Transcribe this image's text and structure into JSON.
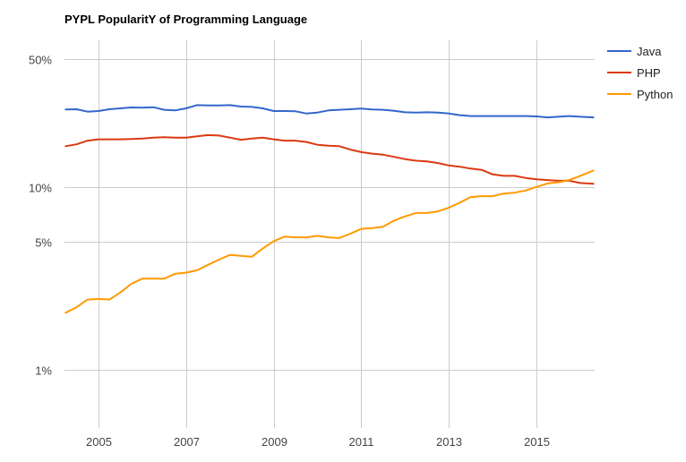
{
  "chart_data": {
    "type": "line",
    "title": "PYPL PopularitY of Programming Language",
    "xlabel": "",
    "ylabel": "",
    "y_scale": "log",
    "ylim": [
      0.5,
      70
    ],
    "xlim": [
      2004.25,
      2016.3
    ],
    "y_ticks": [
      {
        "value": 50,
        "label": "50%"
      },
      {
        "value": 10,
        "label": "10%"
      },
      {
        "value": 5,
        "label": "5%"
      },
      {
        "value": 1,
        "label": "1%"
      }
    ],
    "x_ticks": [
      {
        "value": 2005,
        "label": "2005"
      },
      {
        "value": 2007,
        "label": "2007"
      },
      {
        "value": 2009,
        "label": "2009"
      },
      {
        "value": 2011,
        "label": "2011"
      },
      {
        "value": 2013,
        "label": "2013"
      },
      {
        "value": 2015,
        "label": "2015"
      }
    ],
    "grid": true,
    "legend_position": "right",
    "series": [
      {
        "name": "Java",
        "color": "#3366cc",
        "points": [
          [
            2004.25,
            26.5
          ],
          [
            2004.5,
            26.6
          ],
          [
            2004.75,
            25.8
          ],
          [
            2005.0,
            26.0
          ],
          [
            2005.25,
            26.6
          ],
          [
            2005.5,
            26.9
          ],
          [
            2005.75,
            27.2
          ],
          [
            2006.0,
            27.1
          ],
          [
            2006.25,
            27.3
          ],
          [
            2006.5,
            26.4
          ],
          [
            2006.75,
            26.2
          ],
          [
            2007.0,
            26.9
          ],
          [
            2007.25,
            28.0
          ],
          [
            2007.5,
            27.9
          ],
          [
            2007.75,
            27.9
          ],
          [
            2008.0,
            28.0
          ],
          [
            2008.25,
            27.5
          ],
          [
            2008.5,
            27.4
          ],
          [
            2008.75,
            26.9
          ],
          [
            2009.0,
            26.0
          ],
          [
            2009.25,
            26.0
          ],
          [
            2009.5,
            25.9
          ],
          [
            2009.75,
            25.2
          ],
          [
            2010.0,
            25.5
          ],
          [
            2010.25,
            26.2
          ],
          [
            2010.5,
            26.4
          ],
          [
            2010.75,
            26.6
          ],
          [
            2011.0,
            26.8
          ],
          [
            2011.25,
            26.5
          ],
          [
            2011.5,
            26.4
          ],
          [
            2011.75,
            26.1
          ],
          [
            2012.0,
            25.6
          ],
          [
            2012.25,
            25.5
          ],
          [
            2012.5,
            25.6
          ],
          [
            2012.75,
            25.5
          ],
          [
            2013.0,
            25.2
          ],
          [
            2013.25,
            24.7
          ],
          [
            2013.5,
            24.4
          ],
          [
            2013.75,
            24.4
          ],
          [
            2014.0,
            24.4
          ],
          [
            2014.25,
            24.4
          ],
          [
            2014.5,
            24.4
          ],
          [
            2014.75,
            24.4
          ],
          [
            2015.0,
            24.3
          ],
          [
            2015.25,
            24.0
          ],
          [
            2015.5,
            24.2
          ],
          [
            2015.75,
            24.4
          ],
          [
            2016.0,
            24.2
          ],
          [
            2016.3,
            24.0
          ]
        ]
      },
      {
        "name": "PHP",
        "color": "#dc3912",
        "points": [
          [
            2004.25,
            16.7
          ],
          [
            2004.5,
            17.1
          ],
          [
            2004.75,
            17.9
          ],
          [
            2005.0,
            18.2
          ],
          [
            2005.25,
            18.2
          ],
          [
            2005.5,
            18.2
          ],
          [
            2005.75,
            18.3
          ],
          [
            2006.0,
            18.4
          ],
          [
            2006.25,
            18.6
          ],
          [
            2006.5,
            18.7
          ],
          [
            2006.75,
            18.6
          ],
          [
            2007.0,
            18.6
          ],
          [
            2007.25,
            18.9
          ],
          [
            2007.5,
            19.2
          ],
          [
            2007.75,
            19.1
          ],
          [
            2008.0,
            18.6
          ],
          [
            2008.25,
            18.1
          ],
          [
            2008.5,
            18.4
          ],
          [
            2008.75,
            18.6
          ],
          [
            2009.0,
            18.2
          ],
          [
            2009.25,
            17.9
          ],
          [
            2009.5,
            17.9
          ],
          [
            2009.75,
            17.6
          ],
          [
            2010.0,
            17.0
          ],
          [
            2010.25,
            16.8
          ],
          [
            2010.5,
            16.7
          ],
          [
            2010.75,
            16.0
          ],
          [
            2011.0,
            15.5
          ],
          [
            2011.25,
            15.2
          ],
          [
            2011.5,
            15.0
          ],
          [
            2011.75,
            14.6
          ],
          [
            2012.0,
            14.2
          ],
          [
            2012.25,
            13.9
          ],
          [
            2012.5,
            13.8
          ],
          [
            2012.75,
            13.5
          ],
          [
            2013.0,
            13.1
          ],
          [
            2013.25,
            12.9
          ],
          [
            2013.5,
            12.6
          ],
          [
            2013.75,
            12.4
          ],
          [
            2014.0,
            11.7
          ],
          [
            2014.25,
            11.5
          ],
          [
            2014.5,
            11.5
          ],
          [
            2014.75,
            11.2
          ],
          [
            2015.0,
            11.0
          ],
          [
            2015.25,
            10.9
          ],
          [
            2015.5,
            10.8
          ],
          [
            2015.75,
            10.8
          ],
          [
            2016.0,
            10.5
          ],
          [
            2016.3,
            10.4
          ]
        ]
      },
      {
        "name": "Python",
        "color": "#ff9900",
        "points": [
          [
            2004.25,
            2.05
          ],
          [
            2004.5,
            2.2
          ],
          [
            2004.75,
            2.42
          ],
          [
            2005.0,
            2.44
          ],
          [
            2005.25,
            2.42
          ],
          [
            2005.5,
            2.65
          ],
          [
            2005.75,
            2.95
          ],
          [
            2006.0,
            3.15
          ],
          [
            2006.25,
            3.15
          ],
          [
            2006.5,
            3.15
          ],
          [
            2006.75,
            3.35
          ],
          [
            2007.0,
            3.4
          ],
          [
            2007.25,
            3.5
          ],
          [
            2007.5,
            3.75
          ],
          [
            2007.75,
            4.0
          ],
          [
            2008.0,
            4.25
          ],
          [
            2008.25,
            4.2
          ],
          [
            2008.5,
            4.15
          ],
          [
            2008.75,
            4.6
          ],
          [
            2009.0,
            5.05
          ],
          [
            2009.25,
            5.35
          ],
          [
            2009.5,
            5.3
          ],
          [
            2009.75,
            5.3
          ],
          [
            2010.0,
            5.4
          ],
          [
            2010.25,
            5.3
          ],
          [
            2010.5,
            5.25
          ],
          [
            2010.75,
            5.55
          ],
          [
            2011.0,
            5.9
          ],
          [
            2011.25,
            5.95
          ],
          [
            2011.5,
            6.05
          ],
          [
            2011.75,
            6.55
          ],
          [
            2012.0,
            6.9
          ],
          [
            2012.25,
            7.2
          ],
          [
            2012.5,
            7.2
          ],
          [
            2012.75,
            7.35
          ],
          [
            2013.0,
            7.7
          ],
          [
            2013.25,
            8.2
          ],
          [
            2013.5,
            8.8
          ],
          [
            2013.75,
            8.9
          ],
          [
            2014.0,
            8.9
          ],
          [
            2014.25,
            9.2
          ],
          [
            2014.5,
            9.3
          ],
          [
            2014.75,
            9.55
          ],
          [
            2015.0,
            10.0
          ],
          [
            2015.25,
            10.45
          ],
          [
            2015.5,
            10.6
          ],
          [
            2015.75,
            10.9
          ],
          [
            2016.0,
            11.5
          ],
          [
            2016.3,
            12.3
          ]
        ]
      }
    ]
  }
}
